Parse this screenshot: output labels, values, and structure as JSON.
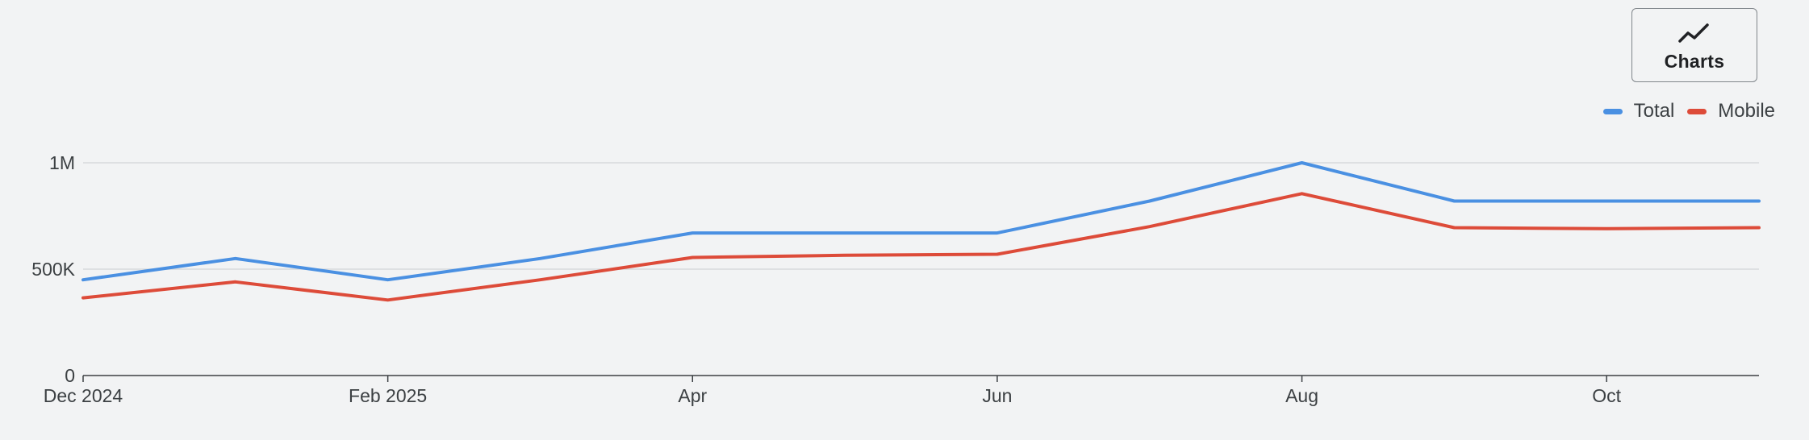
{
  "toolbar": {
    "charts_label": "Charts",
    "charts_icon": "trending-line-icon"
  },
  "chart_data": {
    "type": "line",
    "x": [
      "2024-12",
      "2025-01",
      "2025-02",
      "2025-03",
      "2025-04",
      "2025-05",
      "2025-06",
      "2025-07",
      "2025-08",
      "2025-09",
      "2025-10",
      "2025-11"
    ],
    "x_tick_labels": [
      {
        "x": "2024-12",
        "label": "Dec 2024"
      },
      {
        "x": "2025-02",
        "label": "Feb 2025"
      },
      {
        "x": "2025-04",
        "label": "Apr"
      },
      {
        "x": "2025-06",
        "label": "Jun"
      },
      {
        "x": "2025-08",
        "label": "Aug"
      },
      {
        "x": "2025-10",
        "label": "Oct"
      }
    ],
    "y_ticks": [
      {
        "value": 0,
        "label": "0"
      },
      {
        "value": 500000,
        "label": "500K"
      },
      {
        "value": 1000000,
        "label": "1M"
      }
    ],
    "ylim": [
      0,
      1000000
    ],
    "grid": true,
    "legend": "top-right",
    "series": [
      {
        "name": "Total",
        "color": "#4a90e2",
        "values": [
          450000,
          550000,
          450000,
          550000,
          670000,
          670000,
          670000,
          820000,
          1000000,
          820000,
          820000,
          820000
        ]
      },
      {
        "name": "Mobile",
        "color": "#dd4b39",
        "values": [
          365000,
          440000,
          355000,
          450000,
          555000,
          565000,
          570000,
          700000,
          855000,
          695000,
          690000,
          695000
        ]
      }
    ]
  }
}
